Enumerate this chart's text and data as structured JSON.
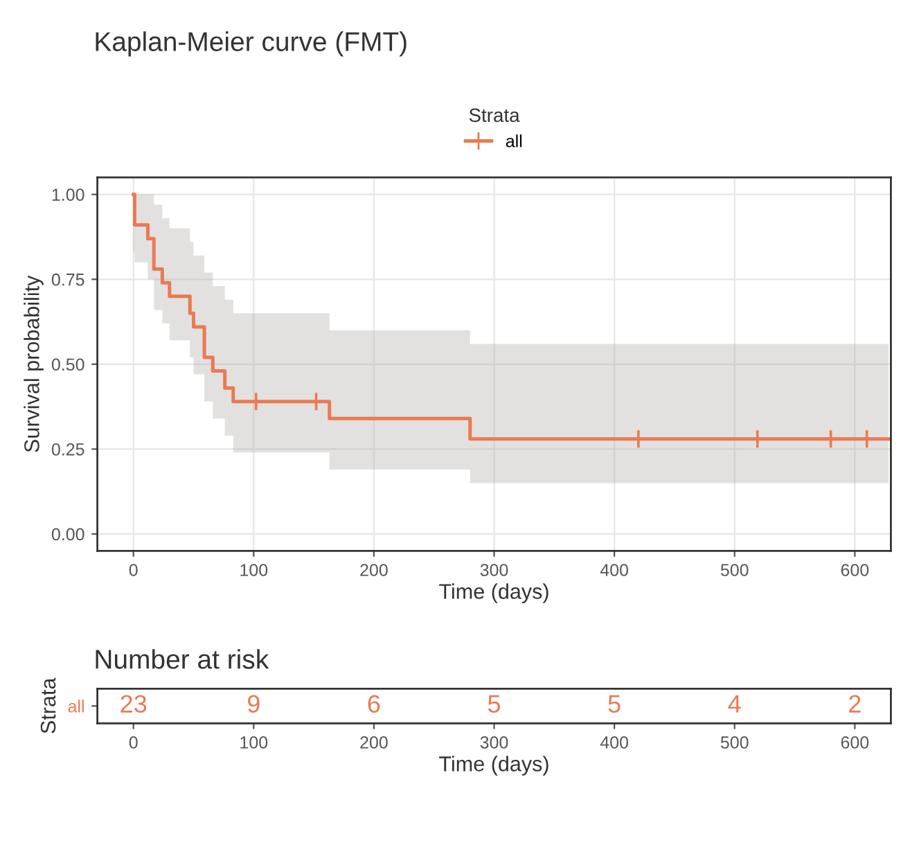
{
  "chart_data": [
    {
      "type": "step",
      "title": "Kaplan-Meier curve (FMT)",
      "xlabel": "Time (days)",
      "ylabel": "Survival probability",
      "legend_title": "Strata",
      "legend": "top",
      "grid": true,
      "xlim": [
        -30,
        630
      ],
      "xticks": [
        0,
        100,
        200,
        300,
        400,
        500,
        600
      ],
      "ylim": [
        -0.05,
        1.05
      ],
      "yticks": [
        {
          "value": 0,
          "label": "0.00"
        },
        {
          "value": 0.25,
          "label": "0.25"
        },
        {
          "value": 0.5,
          "label": "0.50"
        },
        {
          "value": 0.75,
          "label": "0.75"
        },
        {
          "value": 1,
          "label": "1.00"
        }
      ],
      "series": [
        {
          "name": "all",
          "type": "step",
          "color": "#ea7a52",
          "x": [
            0,
            1,
            12,
            17,
            24,
            30,
            47,
            50,
            59,
            66,
            76,
            83,
            163,
            280,
            628
          ],
          "values": [
            1.0,
            0.91,
            0.87,
            0.78,
            0.74,
            0.7,
            0.65,
            0.61,
            0.52,
            0.48,
            0.43,
            0.39,
            0.34,
            0.28,
            0.28
          ],
          "lower": [
            0.83,
            0.8,
            0.75,
            0.66,
            0.62,
            0.57,
            0.52,
            0.47,
            0.39,
            0.34,
            0.29,
            0.24,
            0.19,
            0.15,
            0.15
          ],
          "upper": [
            1.0,
            1.0,
            1.0,
            0.97,
            0.93,
            0.9,
            0.86,
            0.82,
            0.77,
            0.73,
            0.69,
            0.65,
            0.6,
            0.56,
            0.56
          ]
        },
        {
          "type": "scatter",
          "color": "#ea7a52",
          "marker": "cross",
          "x": [
            102,
            152,
            420,
            519,
            580,
            610
          ],
          "values": [
            0.39,
            0.39,
            0.28,
            0.28,
            0.28,
            0.28
          ]
        }
      ]
    },
    {
      "type": "heatmap",
      "title": "Number at risk",
      "xlabel": "Time (days)",
      "ylabel": "Strata",
      "data_labels": true,
      "y_categories": [
        "all"
      ],
      "color": "#ea7a52",
      "categories": [
        "0",
        "100",
        "200",
        "300",
        "400",
        "500",
        "600"
      ],
      "cells": [
        [
          23,
          9,
          6,
          5,
          5,
          4,
          2
        ]
      ]
    }
  ]
}
